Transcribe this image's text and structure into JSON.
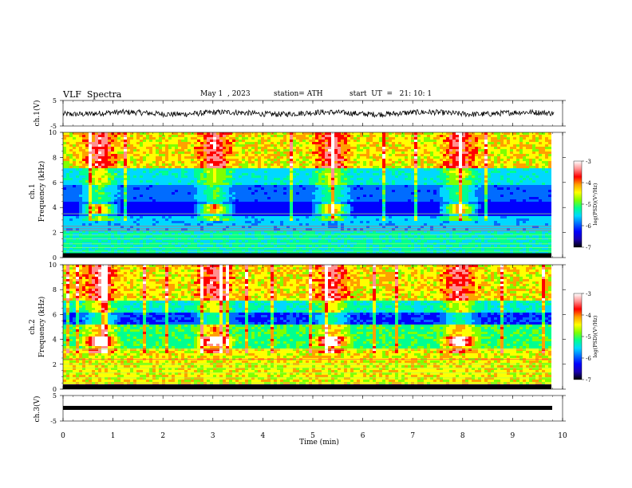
{
  "header": {
    "title": "VLF  Spectra",
    "date": "May 1  , 2023",
    "station": "station= ATH",
    "start_ut": "start  UT  =   21: 10: 1"
  },
  "colorbar_colors": [
    "#000000",
    "#1a00b0",
    "#0000ff",
    "#006cff",
    "#00d8ff",
    "#00ff90",
    "#80ff00",
    "#ffff00",
    "#ffa000",
    "#ff0000",
    "#ff9090",
    "#ffffff"
  ],
  "chart_data": [
    {
      "type": "line",
      "panel": "ch1-waveform",
      "ylabel": "ch.1(V)",
      "ylim": [
        -5,
        5
      ],
      "yticks": [
        5,
        -5
      ],
      "x_range_min": [
        0,
        9.83
      ],
      "description_level": "noisy signal near 0 V"
    },
    {
      "type": "heatmap",
      "panel": "ch1-spectrogram",
      "ylabel": "ch.1\nFrequency (kHz)",
      "ylabel_line1": "ch.1",
      "ylabel_line2": "Frequency  (kHz)",
      "ylim": [
        0,
        10
      ],
      "yticks": [
        0,
        2,
        4,
        6,
        8,
        10
      ],
      "x_range_min": [
        0,
        9.83
      ],
      "colorbar_label": "log(PSD)(V²/Hz)",
      "colorbar_ticks": [
        -3,
        -4,
        -5,
        -6,
        -7
      ],
      "colorbar_range": [
        -7,
        -3
      ],
      "bursts_min": [
        0.7,
        3.0,
        5.35,
        7.9
      ],
      "burst_band_khz": [
        3.6,
        4.4
      ]
    },
    {
      "type": "heatmap",
      "panel": "ch2-spectrogram",
      "ylabel": "ch.2\nFrequency (kHz)",
      "ylabel_line1": "ch.2",
      "ylabel_line2": "Frequency  (kHz)",
      "ylim": [
        0,
        10
      ],
      "yticks": [
        0,
        2,
        4,
        6,
        8,
        10
      ],
      "x_range_min": [
        0,
        9.83
      ],
      "colorbar_label": "log(PSD)(V²/Hz)",
      "colorbar_ticks": [
        -3,
        -4,
        -5,
        -6,
        -7
      ],
      "colorbar_range": [
        -7,
        -3
      ],
      "bursts_min": [
        0.7,
        3.0,
        5.35,
        7.9
      ],
      "burst_band_khz": [
        3.6,
        4.4
      ]
    },
    {
      "type": "line",
      "panel": "ch3-waveform",
      "ylabel": "ch.3(V)",
      "ylim": [
        -5,
        5
      ],
      "yticks": [
        5,
        -5
      ],
      "x_range_min": [
        0,
        9.83
      ],
      "description_level": "flat signal near 0 V"
    }
  ],
  "xaxis": {
    "label": "Time  (min)",
    "ticks": [
      0,
      1,
      2,
      3,
      4,
      5,
      6,
      7,
      8,
      9,
      10
    ],
    "range": [
      0,
      10
    ]
  }
}
